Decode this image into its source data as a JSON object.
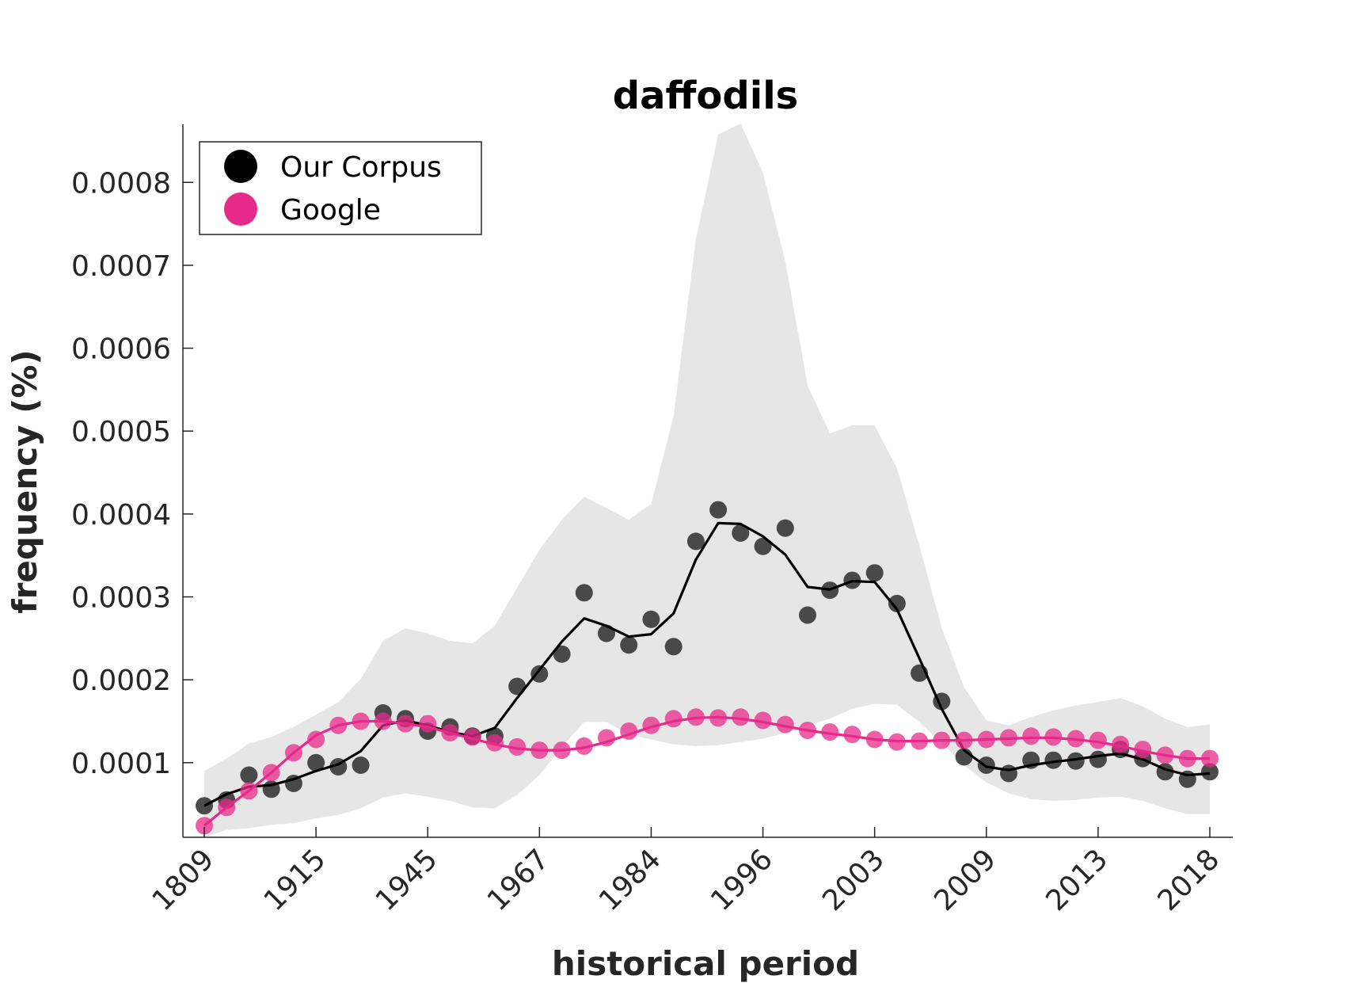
{
  "chart_data": {
    "type": "scatter",
    "title": "daffodils",
    "xlabel": "historical period",
    "ylabel": "frequency (%)",
    "x_tick_labels": [
      "1809",
      "1915",
      "1945",
      "1967",
      "1984",
      "1996",
      "2003",
      "2009",
      "2013",
      "2018"
    ],
    "y_ticks": [
      0.0001,
      0.0002,
      0.0003,
      0.0004,
      0.0005,
      0.0006,
      0.0007,
      0.0008
    ],
    "y_tick_labels": [
      "0.0001",
      "0.0002",
      "0.0003",
      "0.0004",
      "0.0005",
      "0.0006",
      "0.0007",
      "0.0008"
    ],
    "ylim": [
      1e-05,
      0.00087
    ],
    "point_count": 46,
    "legend": {
      "position": "top-left",
      "entries": [
        {
          "label": "Our Corpus",
          "color": "#000000"
        },
        {
          "label": "Google",
          "color": "#e7298a"
        }
      ]
    },
    "series": [
      {
        "name": "Our Corpus",
        "color": "#000000",
        "points": [
          4.8e-05,
          5.5e-05,
          8.5e-05,
          6.8e-05,
          7.5e-05,
          0.0001,
          9.5e-05,
          9.7e-05,
          0.00016,
          0.000153,
          0.000138,
          0.000143,
          0.000132,
          0.000132,
          0.000192,
          0.000207,
          0.000231,
          0.000305,
          0.000256,
          0.000242,
          0.000273,
          0.00024,
          0.000367,
          0.000405,
          0.000377,
          0.000361,
          0.000383,
          0.000278,
          0.000308,
          0.00032,
          0.000329,
          0.000292,
          0.000208,
          0.000174,
          0.000107,
          9.7e-05,
          8.7e-05,
          0.000103,
          0.000103,
          0.000102,
          0.000104,
          0.000116,
          0.000105,
          8.9e-05,
          8e-05,
          8.9e-05
        ],
        "trend": [
          4.8e-05,
          6.2e-05,
          7.1e-05,
          7.3e-05,
          8e-05,
          9e-05,
          9.8e-05,
          0.000114,
          0.000145,
          0.000151,
          0.000145,
          0.000137,
          0.000132,
          0.000142,
          0.000178,
          0.000212,
          0.000246,
          0.000274,
          0.000265,
          0.000252,
          0.000255,
          0.00028,
          0.000345,
          0.000389,
          0.000388,
          0.000373,
          0.000351,
          0.000312,
          0.000309,
          0.000319,
          0.000318,
          0.000285,
          0.000226,
          0.000165,
          0.000115,
          9.5e-05,
          9.1e-05,
          9.7e-05,
          0.000101,
          0.000104,
          0.000108,
          0.000111,
          0.000104,
          9.2e-05,
          8.5e-05,
          8.7e-05
        ],
        "band_upper": [
          9e-05,
          0.000105,
          0.000123,
          0.000131,
          0.000143,
          0.000158,
          0.000173,
          0.000201,
          0.000247,
          0.000262,
          0.000256,
          0.000247,
          0.000244,
          0.000265,
          0.000311,
          0.000357,
          0.000393,
          0.000421,
          0.000407,
          0.000393,
          0.000412,
          0.000518,
          0.000731,
          0.000858,
          0.000871,
          0.000812,
          0.000705,
          0.000555,
          0.000497,
          0.000507,
          0.000507,
          0.000455,
          0.000362,
          0.000263,
          0.000191,
          0.000151,
          0.000145,
          0.000155,
          0.000163,
          0.000169,
          0.000173,
          0.000178,
          0.000168,
          0.000153,
          0.000143,
          0.000146
        ],
        "band_lower": [
          1e-05,
          1.9e-05,
          2.1e-05,
          2.5e-05,
          2.7e-05,
          3.3e-05,
          3.7e-05,
          4.5e-05,
          5.8e-05,
          6.3e-05,
          5.9e-05,
          5.4e-05,
          4.6e-05,
          4.5e-05,
          6.1e-05,
          8.5e-05,
          0.000119,
          0.000149,
          0.000149,
          0.000134,
          0.000128,
          0.000122,
          0.00012,
          0.000121,
          0.000125,
          0.000129,
          0.000136,
          0.000145,
          0.000153,
          0.000165,
          0.000171,
          0.00017,
          0.000149,
          0.000124,
          9.7e-05,
          7.6e-05,
          6.3e-05,
          5.6e-05,
          5.4e-05,
          5.5e-05,
          5.8e-05,
          5.9e-05,
          5.4e-05,
          4.5e-05,
          3.8e-05,
          3.8e-05
        ]
      },
      {
        "name": "Google",
        "color": "#e7298a",
        "points": [
          2.4e-05,
          4.6e-05,
          6.6e-05,
          8.8e-05,
          0.000112,
          0.000128,
          0.000145,
          0.00015,
          0.00015,
          0.000147,
          0.000147,
          0.000136,
          0.000131,
          0.000124,
          0.000119,
          0.000115,
          0.000115,
          0.00012,
          0.00013,
          0.000138,
          0.000145,
          0.000153,
          0.000155,
          0.000154,
          0.000155,
          0.000151,
          0.000146,
          0.000139,
          0.000137,
          0.000134,
          0.000128,
          0.000125,
          0.000126,
          0.000127,
          0.000127,
          0.000128,
          0.00013,
          0.000132,
          0.000131,
          0.000129,
          0.000127,
          0.000122,
          0.000116,
          0.000109,
          0.000105,
          0.000105
        ],
        "trend": [
          2.4e-05,
          4.6e-05,
          6.6e-05,
          8.8e-05,
          0.000112,
          0.000133,
          0.000145,
          0.00015,
          0.00015,
          0.000147,
          0.000143,
          0.000136,
          0.000129,
          0.000122,
          0.000117,
          0.000115,
          0.000115,
          0.000118,
          0.000125,
          0.000134,
          0.000143,
          0.00015,
          0.000154,
          0.000155,
          0.000153,
          0.000149,
          0.000144,
          0.000139,
          0.000135,
          0.000132,
          0.000128,
          0.000126,
          0.000126,
          0.000127,
          0.000127,
          0.000128,
          0.000129,
          0.00013,
          0.00013,
          0.000128,
          0.000125,
          0.00012,
          0.000114,
          0.000109,
          0.000105,
          0.000105
        ]
      }
    ]
  }
}
